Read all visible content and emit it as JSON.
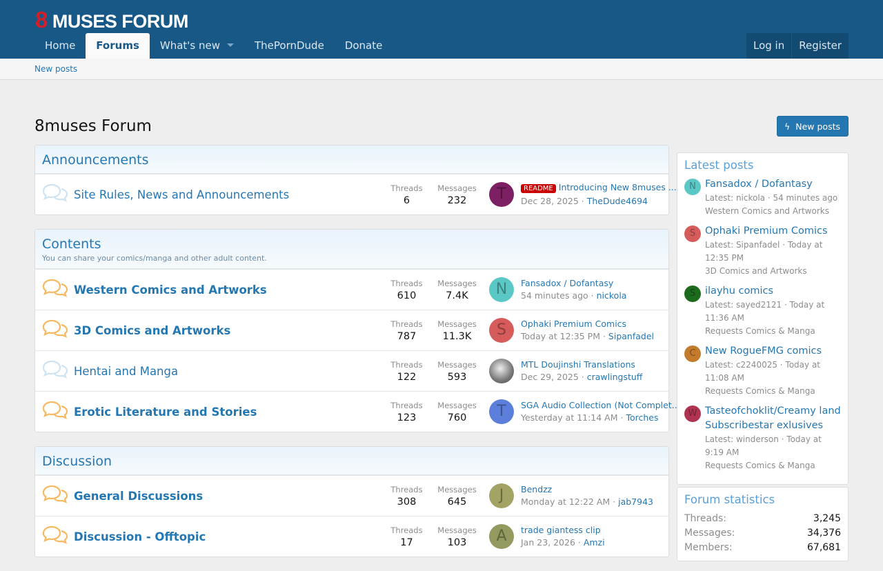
{
  "header": {
    "logo_mark": "8",
    "logo_text": "MUSES FORUM",
    "nav": [
      {
        "label": "Home"
      },
      {
        "label": "Forums",
        "active": true
      },
      {
        "label": "What's new",
        "dropdown": true
      },
      {
        "label": "ThePornDude"
      },
      {
        "label": "Donate"
      }
    ],
    "login": "Log in",
    "register": "Register"
  },
  "subnav": {
    "new_posts": "New posts"
  },
  "page": {
    "title": "8muses Forum",
    "new_posts_button": "New posts"
  },
  "labels": {
    "threads": "Threads",
    "messages": "Messages"
  },
  "categories": [
    {
      "title": "Announcements",
      "desc": "",
      "forums": [
        {
          "name": "Site Rules, News and Announcements",
          "unread": false,
          "threads": "6",
          "messages": "232",
          "avatar": "T",
          "avatar_color": "#7d1f63",
          "badge": "README",
          "last_title": "Introducing New 8muses ...",
          "last_date": "Dec 28, 2025",
          "last_user": "TheDude4694"
        }
      ]
    },
    {
      "title": "Contents",
      "desc": "You can share your comics/manga and other adult content.",
      "forums": [
        {
          "name": "Western Comics and Artworks",
          "unread": true,
          "threads": "610",
          "messages": "7.4K",
          "avatar": "N",
          "avatar_color": "#5cc8c5",
          "last_title": "Fansadox / Dofantasy",
          "last_date": "54 minutes ago",
          "last_user": "nickola"
        },
        {
          "name": "3D Comics and Artworks",
          "unread": true,
          "threads": "787",
          "messages": "11.3K",
          "avatar": "S",
          "avatar_color": "#d65c5c",
          "last_title": "Ophaki Premium Comics",
          "last_date": "Today at 12:35 PM",
          "last_user": "Sipanfadel"
        },
        {
          "name": "Hentai and Manga",
          "unread": false,
          "threads": "122",
          "messages": "593",
          "avatar": "",
          "avatar_color": "#9a9a9a",
          "last_title": "MTL Doujinshi Translations",
          "last_date": "Dec 29, 2025",
          "last_user": "crawlingstuff"
        },
        {
          "name": "Erotic Literature and Stories",
          "unread": true,
          "threads": "123",
          "messages": "760",
          "avatar": "T",
          "avatar_color": "#5b7fdb",
          "last_title": "SGA Audio Collection (Not Complet...",
          "last_date": "Yesterday at 11:14 AM",
          "last_user": "Torches"
        }
      ]
    },
    {
      "title": "Discussion",
      "desc": "",
      "forums": [
        {
          "name": "General Discussions",
          "unread": true,
          "threads": "308",
          "messages": "645",
          "avatar": "J",
          "avatar_color": "#a3a365",
          "last_title": "Bendzz",
          "last_date": "Monday at 12:22 AM",
          "last_user": "jab7943"
        },
        {
          "name": "Discussion - Offtopic",
          "unread": true,
          "threads": "17",
          "messages": "103",
          "avatar": "A",
          "avatar_color": "#94995f",
          "last_title": "trade giantess clip",
          "last_date": "Jan 23, 2026",
          "last_user": "Amzi"
        }
      ]
    }
  ],
  "sidebar": {
    "latest_title": "Latest posts",
    "latest": [
      {
        "avatar": "N",
        "color": "#5cc8c5",
        "title": "Fansadox / Dofantasy",
        "meta": "Latest: nickola · 54 minutes ago",
        "forum": "Western Comics and Artworks"
      },
      {
        "avatar": "S",
        "color": "#d65c5c",
        "title": "Ophaki Premium Comics",
        "meta": "Latest: Sipanfadel · Today at 12:35 PM",
        "forum": "3D Comics and Artworks"
      },
      {
        "avatar": "S",
        "color": "#1d6b1d",
        "title": "ilayhu comics",
        "meta": "Latest: sayed2121 · Today at 11:36 AM",
        "forum": "Requests Comics & Manga"
      },
      {
        "avatar": "C",
        "color": "#c27a2c",
        "title": "New RogueFMG comics",
        "meta": "Latest: c2240025 · Today at 11:08 AM",
        "forum": "Requests Comics & Manga"
      },
      {
        "avatar": "W",
        "color": "#b03352",
        "title": "Tasteofchoklit/Creamy land Subscribestar exlusives",
        "meta": "Latest: winderson · Today at 9:19 AM",
        "forum": "Requests Comics & Manga"
      }
    ],
    "stats_title": "Forum statistics",
    "stats": [
      {
        "label": "Threads:",
        "value": "3,245"
      },
      {
        "label": "Messages:",
        "value": "34,376"
      },
      {
        "label": "Members:",
        "value": "67,681"
      }
    ]
  }
}
